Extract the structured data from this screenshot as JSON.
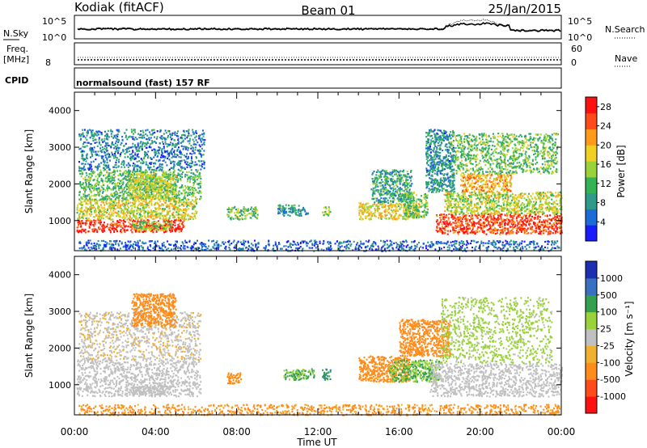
{
  "header": {
    "station": "Kodiak (fitACF)",
    "beam": "Beam 01",
    "date": "25/Jan/2015"
  },
  "top_panels": {
    "nsky_label": "N.Sky",
    "nsky_ticks": [
      "10^5",
      "10^0"
    ],
    "nsearch_label": "N.Search",
    "nsearch_ticks": [
      "10^5",
      "10^0"
    ],
    "freq_label": "Freq.",
    "freq_unit": "[MHz]",
    "freq_tick": "8",
    "nave_label": "Nave",
    "nave_ticks": [
      "60",
      "0"
    ],
    "cpid_label": "CPID",
    "cpid_text": "normalsound (fast) 157 RF"
  },
  "chart_data": [
    {
      "name": "power",
      "type": "heatmap",
      "xlabel": "Time UT",
      "ylabel": "Slant Range [km]",
      "x_ticks": [
        "00:00",
        "04:00",
        "08:00",
        "12:00",
        "16:00",
        "20:00",
        "00:00"
      ],
      "xlim_hours": [
        0,
        24
      ],
      "y_ticks": [
        1000,
        2000,
        3000,
        4000
      ],
      "ylim": [
        180,
        4500
      ],
      "colorbar_label": "Power [dB]",
      "colorbar_ticks": [
        "28",
        "24",
        "20",
        "16",
        "12",
        "8",
        "4"
      ],
      "colorbar_range": [
        0,
        30
      ],
      "colorbar_colors": [
        "#1b1bff",
        "#1d6bd6",
        "#2f9a8a",
        "#33b355",
        "#9ad23a",
        "#f0d020",
        "#ff9a1a",
        "#ff4a1a",
        "#ff1010"
      ],
      "regions": [
        {
          "t": [
            0.1,
            5.4
          ],
          "r": [
            700,
            1050
          ],
          "v": 27
        },
        {
          "t": [
            0.1,
            6.0
          ],
          "r": [
            1050,
            1600
          ],
          "v": 17
        },
        {
          "t": [
            0.2,
            6.2
          ],
          "r": [
            1600,
            2400
          ],
          "v": 12
        },
        {
          "t": [
            0.2,
            6.4
          ],
          "r": [
            2400,
            3500
          ],
          "v": 7
        },
        {
          "t": [
            2.6,
            5.0
          ],
          "r": [
            1600,
            2300
          ],
          "v": 16
        },
        {
          "t": [
            2.8,
            4.8
          ],
          "r": [
            750,
            1000
          ],
          "v": 14
        },
        {
          "t": [
            7.5,
            9.0
          ],
          "r": [
            1050,
            1400
          ],
          "v": 13
        },
        {
          "t": [
            10.0,
            11.5
          ],
          "r": [
            1150,
            1450
          ],
          "v": 9
        },
        {
          "t": [
            12.2,
            12.6
          ],
          "r": [
            1150,
            1400
          ],
          "v": 15
        },
        {
          "t": [
            14.0,
            17.0
          ],
          "r": [
            1050,
            1500
          ],
          "v": 18
        },
        {
          "t": [
            14.6,
            16.6
          ],
          "r": [
            1500,
            2400
          ],
          "v": 10
        },
        {
          "t": [
            16.2,
            17.4
          ],
          "r": [
            1100,
            1800
          ],
          "v": 13
        },
        {
          "t": [
            17.3,
            18.7
          ],
          "r": [
            1800,
            3500
          ],
          "v": 8
        },
        {
          "t": [
            17.8,
            24.0
          ],
          "r": [
            650,
            1200
          ],
          "v": 26
        },
        {
          "t": [
            18.2,
            24.0
          ],
          "r": [
            1200,
            1800
          ],
          "v": 16
        },
        {
          "t": [
            19.0,
            21.5
          ],
          "r": [
            1800,
            2300
          ],
          "v": 21
        },
        {
          "t": [
            18.5,
            23.8
          ],
          "r": [
            2300,
            3400
          ],
          "v": 13
        },
        {
          "t": [
            0.2,
            23.9
          ],
          "r": [
            190,
            480
          ],
          "v": 5
        }
      ]
    },
    {
      "name": "velocity",
      "type": "heatmap",
      "xlabel": "Time UT",
      "ylabel": "Slant Range [km]",
      "x_ticks": [
        "00:00",
        "04:00",
        "08:00",
        "12:00",
        "16:00",
        "20:00",
        "00:00"
      ],
      "xlim_hours": [
        0,
        24
      ],
      "y_ticks": [
        1000,
        2000,
        3000,
        4000
      ],
      "ylim": [
        180,
        4500
      ],
      "colorbar_label": "Velocity [m s⁻¹]",
      "colorbar_ticks": [
        "1000",
        "500",
        "100",
        "25",
        "-25",
        "-100",
        "-500",
        "-1000"
      ],
      "colorbar_colors": [
        "#ff1010",
        "#ff4a1a",
        "#ff8c1a",
        "#f0b030",
        "#c0c0c0",
        "#9ad23a",
        "#33a050",
        "#3a70c0",
        "#1b2fb0"
      ],
      "ground_color": "#c0c0c0",
      "regions": [
        {
          "t": [
            0.1,
            6.2
          ],
          "r": [
            700,
            1700
          ],
          "v": 0
        },
        {
          "t": [
            0.2,
            6.2
          ],
          "r": [
            1700,
            3000
          ],
          "v": -15
        },
        {
          "t": [
            2.8,
            5.0
          ],
          "r": [
            2600,
            3500
          ],
          "v": -200
        },
        {
          "t": [
            2.8,
            4.8
          ],
          "r": [
            750,
            1000
          ],
          "v": 0
        },
        {
          "t": [
            7.5,
            8.2
          ],
          "r": [
            1050,
            1350
          ],
          "v": -150
        },
        {
          "t": [
            10.3,
            11.8
          ],
          "r": [
            1150,
            1450
          ],
          "v": 60
        },
        {
          "t": [
            12.2,
            12.6
          ],
          "r": [
            1150,
            1450
          ],
          "v": 300
        },
        {
          "t": [
            14.0,
            16.5
          ],
          "r": [
            1100,
            1800
          ],
          "v": -200
        },
        {
          "t": [
            15.5,
            18.0
          ],
          "r": [
            1100,
            1700
          ],
          "v": 60
        },
        {
          "t": [
            16.0,
            18.5
          ],
          "r": [
            1800,
            2800
          ],
          "v": -150
        },
        {
          "t": [
            17.5,
            24.0
          ],
          "r": [
            700,
            1600
          ],
          "v": 0
        },
        {
          "t": [
            18.0,
            23.5
          ],
          "r": [
            1600,
            3400
          ],
          "v": 40
        },
        {
          "t": [
            0.2,
            23.9
          ],
          "r": [
            190,
            480
          ],
          "v": -80
        }
      ]
    }
  ]
}
